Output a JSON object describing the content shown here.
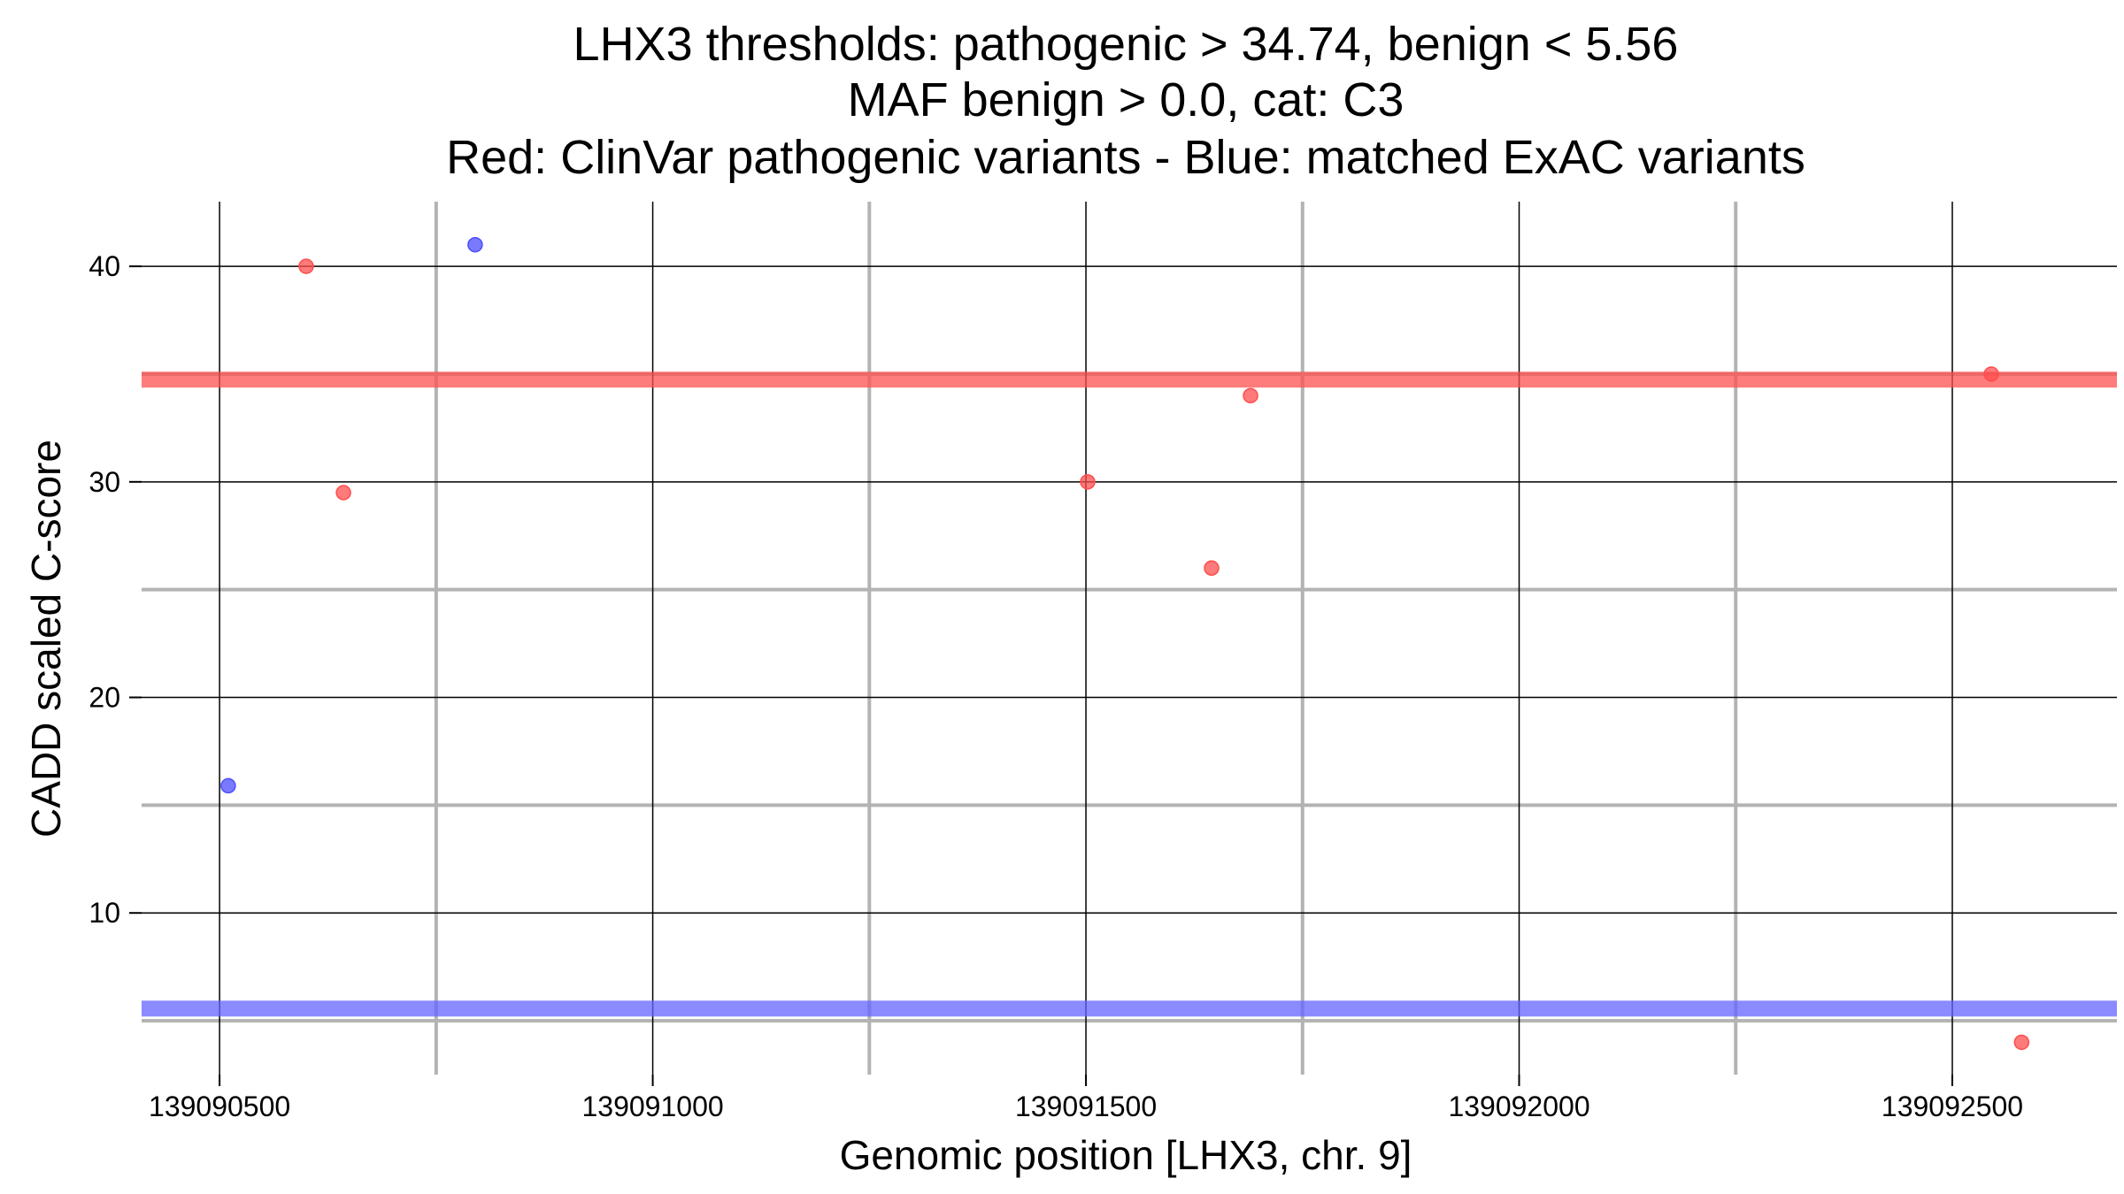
{
  "chart_data": {
    "type": "scatter",
    "title": [
      "LHX3 thresholds: pathogenic > 34.74, benign < 5.56",
      "MAF benign > 0.0, cat: C3",
      "Red: ClinVar pathogenic variants - Blue: matched ExAC variants"
    ],
    "xlabel": "Genomic position [LHX3, chr. 9]",
    "ylabel": "CADD scaled C-score",
    "xlim": [
      139090410,
      139092690
    ],
    "ylim": [
      2.5,
      43
    ],
    "x_ticks": [
      139090500,
      139091000,
      139091500,
      139092000,
      139092500
    ],
    "x_tick_labels": [
      "139090500",
      "139091000",
      "139091500",
      "139092000",
      "139092500"
    ],
    "x_minor_gridlines": [
      139090750,
      139091250,
      139091750,
      139092250
    ],
    "y_ticks": [
      10,
      20,
      30,
      40
    ],
    "y_tick_labels": [
      "10",
      "20",
      "30",
      "40"
    ],
    "y_minor_gridlines": [
      5,
      15,
      25,
      35
    ],
    "grid": true,
    "thresholds": [
      {
        "name": "pathogenic",
        "value": 34.74,
        "color": "#ff5050"
      },
      {
        "name": "benign",
        "value": 5.56,
        "color": "#6464ff"
      }
    ],
    "series": [
      {
        "name": "ClinVar pathogenic variants",
        "color": "#ff4d4d",
        "points": [
          {
            "x": 139090600,
            "y": 40
          },
          {
            "x": 139090643,
            "y": 29.5
          },
          {
            "x": 139091502,
            "y": 30
          },
          {
            "x": 139091645,
            "y": 26
          },
          {
            "x": 139091690,
            "y": 34
          },
          {
            "x": 139092545,
            "y": 35
          },
          {
            "x": 139092580,
            "y": 4
          }
        ]
      },
      {
        "name": "matched ExAC variants",
        "color": "#4d4dff",
        "points": [
          {
            "x": 139090510,
            "y": 15.9
          },
          {
            "x": 139090795,
            "y": 41
          }
        ]
      }
    ]
  }
}
